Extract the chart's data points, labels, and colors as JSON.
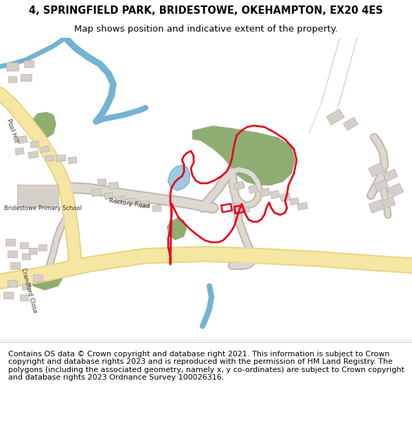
{
  "title_line1": "4, SPRINGFIELD PARK, BRIDESTOWE, OKEHAMPTON, EX20 4ES",
  "title_line2": "Map shows position and indicative extent of the property.",
  "footer_text": "Contains OS data © Crown copyright and database right 2021. This information is subject to Crown copyright and database rights 2023 and is reproduced with the permission of HM Land Registry. The polygons (including the associated geometry, namely x, y co-ordinates) are subject to Crown copyright and database rights 2023 Ordnance Survey 100026316.",
  "map_bg": "#f0eeeb",
  "road_yellow_fill": "#f5e6a3",
  "road_yellow_edge": "#e8d580",
  "road_grey_fill": "#ddd8d0",
  "road_grey_edge": "#c0b8b0",
  "building_color": "#d4cfc8",
  "building_outline": "#b8b0a8",
  "green_area": "#8fad72",
  "green_dark": "#7a9860",
  "water_color": "#9ecae1",
  "river_color": "#74b3d3",
  "red_outline": "#e8001c",
  "label_color": "#333333",
  "light_blue_line": "#b0cce0",
  "title_fontsize": 10.5,
  "subtitle_fontsize": 9.5,
  "footer_fontsize": 8.0
}
